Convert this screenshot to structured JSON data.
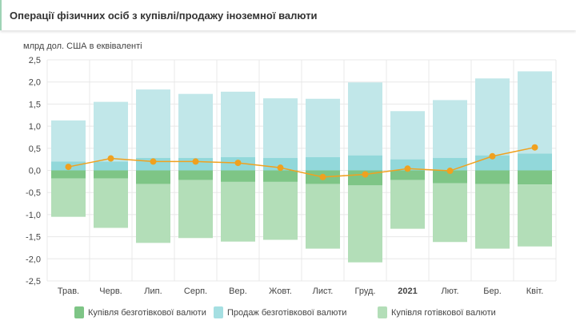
{
  "header": {
    "title": "Операції фізичних осіб з купівлі/продажу іноземної валюти"
  },
  "chart_data": {
    "type": "bar",
    "stacked": true,
    "title": "Операції фізичних осіб з купівлі/продажу іноземної валюти",
    "ylabel": "млрд дол. США в еквіваленті",
    "ylim": [
      -2.5,
      2.5
    ],
    "yticks": [
      "2,5",
      "2,0",
      "1,5",
      "1,0",
      "0,5",
      "0,0",
      "-0,5",
      "-1,0",
      "-1,5",
      "-2,0",
      "-2,5"
    ],
    "ytick_values": [
      2.5,
      2.0,
      1.5,
      1.0,
      0.5,
      0.0,
      -0.5,
      -1.0,
      -1.5,
      -2.0,
      -2.5
    ],
    "grid": true,
    "legend_position": "bottom",
    "categories": [
      "Трав.",
      "Черв.",
      "Лип.",
      "Серп.",
      "Вер.",
      "Жовт.",
      "Лист.",
      "Груд.",
      "2021",
      "Лют.",
      "Бер.",
      "Квіт."
    ],
    "bold_categories": [
      "2021"
    ],
    "series": [
      {
        "key": "pos_inner",
        "color": "#92d8da",
        "values": [
          0.2,
          0.2,
          0.28,
          0.28,
          0.3,
          0.28,
          0.3,
          0.34,
          0.25,
          0.28,
          0.34,
          0.38
        ]
      },
      {
        "key": "pos_outer",
        "name": "Продаж безготівкової валюти",
        "color": "#c1e7e9",
        "values": [
          0.93,
          1.35,
          1.55,
          1.45,
          1.48,
          1.35,
          1.32,
          1.65,
          1.09,
          1.31,
          1.74,
          1.86
        ]
      },
      {
        "key": "neg_inner",
        "name": "Купівля безготівкової валюти",
        "color": "#7ec586",
        "values": [
          -0.18,
          -0.18,
          -0.31,
          -0.22,
          -0.26,
          -0.26,
          -0.31,
          -0.34,
          -0.22,
          -0.29,
          -0.31,
          -0.32
        ]
      },
      {
        "key": "neg_outer",
        "name": "Купівля готівкової валюти",
        "color": "#b3deb8",
        "values": [
          -0.87,
          -1.12,
          -1.33,
          -1.31,
          -1.35,
          -1.31,
          -1.46,
          -1.74,
          -1.1,
          -1.33,
          -1.46,
          -1.4
        ]
      },
      {
        "key": "line",
        "type": "line",
        "color": "#f0a11f",
        "values": [
          0.08,
          0.27,
          0.2,
          0.2,
          0.17,
          0.06,
          -0.15,
          -0.09,
          0.04,
          -0.01,
          0.32,
          0.52
        ]
      }
    ]
  },
  "legend": [
    {
      "label": "Купівля безготівкової валюти",
      "color": "#7ec586"
    },
    {
      "label": "Продаж безготівкової валюти",
      "color": "#a5dfe2"
    },
    {
      "label": "Купівля готівкової валюти",
      "color": "#b3deb8"
    }
  ]
}
